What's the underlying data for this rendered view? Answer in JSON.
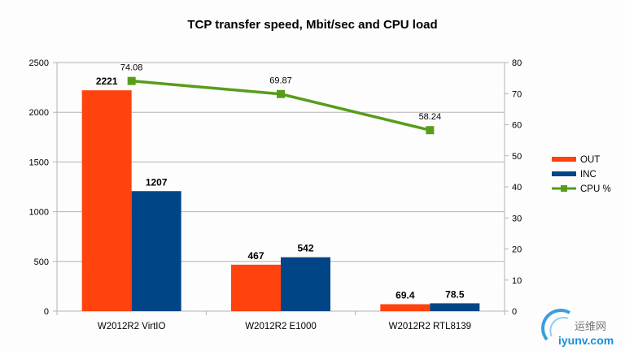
{
  "chart_data": {
    "type": "bar",
    "title": "TCP transfer speed, Mbit/sec and CPU load",
    "categories": [
      "W2012R2 VirtIO",
      "W2012R2 E1000",
      "W2012R2 RTL8139"
    ],
    "series": [
      {
        "name": "OUT",
        "type": "bar",
        "axis": "left",
        "color": "#ff420e",
        "values": [
          2221,
          467,
          69.4
        ],
        "labels": [
          "2221",
          "467",
          "69.4"
        ]
      },
      {
        "name": "INC",
        "type": "bar",
        "axis": "left",
        "color": "#004586",
        "values": [
          1207,
          542,
          78.5
        ],
        "labels": [
          "1207",
          "542",
          "78.5"
        ]
      },
      {
        "name": "CPU %",
        "type": "line",
        "axis": "right",
        "color": "#579d1c",
        "values": [
          74.08,
          69.87,
          58.24
        ],
        "labels": [
          "74.08",
          "69.87",
          "58.24"
        ]
      }
    ],
    "ylim": [
      0,
      2500
    ],
    "yticks": [
      "0",
      "500",
      "1000",
      "1500",
      "2000",
      "2500"
    ],
    "y2lim": [
      0,
      80
    ],
    "y2ticks": [
      "0",
      "10",
      "20",
      "30",
      "40",
      "50",
      "60",
      "70",
      "80"
    ],
    "grid": true,
    "legend": "right"
  },
  "watermark": {
    "cn": "运维网",
    "en": "iyunv.com"
  }
}
